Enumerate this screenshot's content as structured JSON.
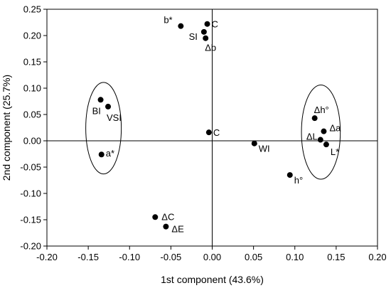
{
  "chart_data": {
    "type": "scatter",
    "title": "",
    "xlabel": "1st component (43.6%)",
    "ylabel": "2nd component (25.7%)",
    "xlim": [
      -0.2,
      0.2
    ],
    "ylim": [
      -0.2,
      0.25
    ],
    "xticks": [
      "-0.20",
      "-0.15",
      "-0.10",
      "-0.05",
      "0.00",
      "0.05",
      "0.10",
      "0.15",
      "0.20"
    ],
    "yticks": [
      "-0.20",
      "-0.15",
      "-0.10",
      "-0.05",
      "0.00",
      "0.05",
      "0.10",
      "0.15",
      "0.20",
      "0.25"
    ],
    "grid": false,
    "reference_lines": {
      "x": 0,
      "y": 0
    },
    "points": [
      {
        "label": "b*",
        "x": -0.038,
        "y": 0.218
      },
      {
        "label": "C",
        "x": -0.006,
        "y": 0.222
      },
      {
        "label": "SI",
        "x": -0.01,
        "y": 0.207
      },
      {
        "label": "Δb",
        "x": -0.008,
        "y": 0.195
      },
      {
        "label": "BI",
        "x": -0.135,
        "y": 0.078
      },
      {
        "label": "VSI",
        "x": -0.126,
        "y": 0.065
      },
      {
        "label": "a*",
        "x": -0.134,
        "y": -0.026
      },
      {
        "label": "C",
        "x": -0.004,
        "y": 0.016
      },
      {
        "label": "WI",
        "x": 0.051,
        "y": -0.005
      },
      {
        "label": "Δh°",
        "x": 0.124,
        "y": 0.043
      },
      {
        "label": "Δa",
        "x": 0.135,
        "y": 0.018
      },
      {
        "label": "ΔL",
        "x": 0.131,
        "y": 0.002
      },
      {
        "label": "L*",
        "x": 0.138,
        "y": -0.007
      },
      {
        "label": "h°",
        "x": 0.094,
        "y": -0.065
      },
      {
        "label": "ΔC",
        "x": -0.069,
        "y": -0.145
      },
      {
        "label": "ΔE",
        "x": -0.056,
        "y": -0.163
      }
    ],
    "clusters": [
      {
        "cx": -0.1315,
        "cy": 0.024,
        "rx": 0.0215,
        "ry": 0.087
      },
      {
        "cx": 0.1315,
        "cy": 0.0165,
        "rx": 0.0235,
        "ry": 0.0895
      }
    ]
  }
}
